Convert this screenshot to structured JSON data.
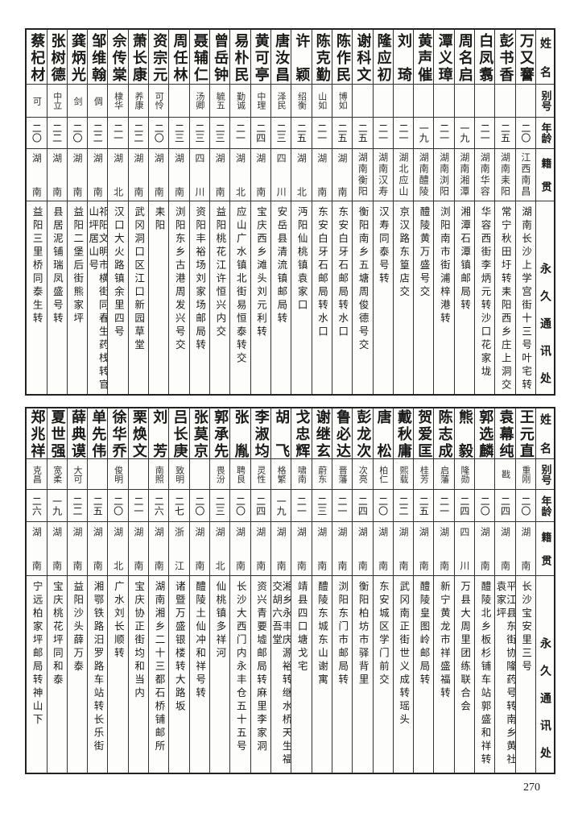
{
  "headers": {
    "name": "姓名",
    "alias": "别号",
    "age": "年龄",
    "home": "籍贯",
    "addr": "永久通讯处"
  },
  "tables": [
    {
      "rows": [
        {
          "name": "万又謇",
          "alias": "",
          "age": "二〇",
          "home": "江西南昌",
          "addr": "湖南长沙上学宫街十三号叶宅转"
        },
        {
          "name": "彭书香",
          "alias": "",
          "age": "二五",
          "home": "湖南耒阳",
          "addr": "常宁秋田圩转耒阳西乡庄上洞交"
        },
        {
          "name": "白凤翥",
          "alias": "",
          "age": "二一",
          "home": "湖南华容",
          "addr": "华容西街李炳元转沙口花家垅"
        },
        {
          "name": "周名启",
          "alias": "",
          "age": "一九",
          "home": "湖南湘潭",
          "addr": "湘潭石潭镇邮局转"
        },
        {
          "name": "潭义璋",
          "alias": "",
          "age": "二一",
          "home": "湖南浏阳",
          "addr": "浏阳南市街浦梓港转"
        },
        {
          "name": "黄声催",
          "alias": "",
          "age": "一九",
          "home": "湖南醴陵",
          "addr": "醴陵黄万盛号交"
        },
        {
          "name": "刘琦",
          "alias": "",
          "age": "二一",
          "home": "湖北应山",
          "addr": "京汉路东篁店交"
        },
        {
          "name": "隆应初",
          "alias": "",
          "age": "二一",
          "home": "湖南汉寿",
          "addr": "汉寿同泰号转"
        },
        {
          "name": "谢科文",
          "alias": "",
          "age": "二五",
          "home": "湖南衡阳",
          "addr": "衡阳南乡五塘周俊德号交"
        },
        {
          "name": "陈作民",
          "alias": "博如",
          "age": "二五",
          "home": "湖南",
          "addr": "东安白牙石邮局转水口"
        },
        {
          "name": "陈克勤",
          "alias": "山如",
          "age": "二一",
          "home": "湖南",
          "addr": "东安白牙石邮局转水口"
        },
        {
          "name": "许颖",
          "alias": "绍衡",
          "age": "二五",
          "home": "湖北",
          "addr": "沔阳仙桃镇袁家口"
        },
        {
          "name": "唐汝昌",
          "alias": "泽民",
          "age": "二三",
          "home": "四川",
          "addr": "安岳县清流镇邮局转"
        },
        {
          "name": "黄可亭",
          "alias": "中理",
          "age": "二四",
          "home": "湖南",
          "addr": "宝庆西乡滩头刘元利转"
        },
        {
          "name": "易朴民",
          "alias": "勤诚",
          "age": "二一",
          "home": "湖北",
          "addr": "应山广水镇北街易恒泰转交"
        },
        {
          "name": "曾岳钟",
          "alias": "毓五",
          "age": "二三",
          "home": "湖南",
          "addr": "益阳桃花江许恒兴内交"
        },
        {
          "name": "聂辅仁",
          "alias": "汤卿",
          "age": "二三",
          "home": "四川",
          "addr": "资阳丰裕场刘家场邮局转"
        },
        {
          "name": "周任林",
          "alias": "",
          "age": "二三",
          "home": "湖南",
          "addr": "浏阳东乡古港周发兴号交"
        },
        {
          "name": "资宗元",
          "alias": "可怜",
          "age": "二〇",
          "home": "湖南",
          "addr": "耒阳"
        },
        {
          "name": "萧长康",
          "alias": "养康",
          "age": "二二",
          "home": "湖南",
          "addr": "武冈洞口区江口新园草堂"
        },
        {
          "name": "佘传棠",
          "alias": "棣华",
          "age": "二一",
          "home": "湖北",
          "addr": "汉口大火路镇余里四号"
        },
        {
          "name": "邹维翰",
          "alias": "倜",
          "age": "二二",
          "home": "湖南",
          "addr": "祁阳文明市横街同春生药栈转官山坪居山号"
        },
        {
          "name": "龚炳光",
          "alias": "剑",
          "age": "二〇",
          "home": "湖南",
          "addr": "益阳二堡后街熊家坪"
        },
        {
          "name": "张树德",
          "alias": "中立",
          "age": "二二",
          "home": "湖南",
          "addr": "县居泥铺瑞凤盛号转"
        },
        {
          "name": "蔡杞材",
          "alias": "可",
          "age": "二〇",
          "home": "湖南",
          "addr": "益阳三里桥同泰生转"
        }
      ]
    },
    {
      "rows": [
        {
          "name": "王元直",
          "alias": "重刚",
          "age": "二〇",
          "home": "湖南",
          "addr": "长沙宝安里三号"
        },
        {
          "name": "袁幕纯",
          "alias": "戡",
          "age": "二四",
          "home": "湖南",
          "addr": "平江县东街协隆药号转南乡黄社袁家坪"
        },
        {
          "name": "郭选麟",
          "alias": "",
          "age": "二〇",
          "home": "湖南",
          "addr": "醴陵北乡板杉铺车站郭盛和祥转"
        },
        {
          "name": "熊毅",
          "alias": "隆勋",
          "age": "二四",
          "home": "四川",
          "addr": "万县大周里团练联合会"
        },
        {
          "name": "陈志成",
          "alias": "启藩",
          "age": "二一",
          "home": "湖南",
          "addr": "新宁黄龙市祥盛福转"
        },
        {
          "name": "贺爱匡",
          "alias": "桂芳",
          "age": "二五",
          "home": "湖南",
          "addr": "醴陵皇图岭邮局转"
        },
        {
          "name": "戴秋庸",
          "alias": "熙载",
          "age": "二二",
          "home": "湖南",
          "addr": "武冈南正街世义成转瑶头"
        },
        {
          "name": "唐松",
          "alias": "柏仁",
          "age": "二〇",
          "home": "湖南",
          "addr": "东安城区学门前交"
        },
        {
          "name": "彭龙次",
          "alias": "次亮",
          "age": "二四",
          "home": "湖南",
          "addr": "衡阳柏坊市驿背里"
        },
        {
          "name": "鲁必达",
          "alias": "晋藩",
          "age": "二一",
          "home": "湖南",
          "addr": "浏阳东门市邮局转"
        },
        {
          "name": "谢继玄",
          "alias": "蔚东",
          "age": "二三",
          "home": "湖南",
          "addr": "醴陵东城东山谢寓"
        },
        {
          "name": "戈忠辉",
          "alias": "啸南",
          "age": "二一",
          "home": "湖南",
          "addr": "靖县四口塘戈宅"
        },
        {
          "name": "胡飞",
          "alias": "格繁",
          "age": "一九",
          "home": "湖南",
          "addr": "湘乡永丰庆源裕转继水桥天生福交胡六吾堂"
        },
        {
          "name": "李淑均",
          "alias": "灵性",
          "age": "二四",
          "home": "湖南",
          "addr": "资兴青要墟邮局转麻里李家洞"
        },
        {
          "name": "张胤",
          "alias": "聘良",
          "age": "二〇",
          "home": "湖南",
          "addr": "长沙大西门内永丰仓五十五号"
        },
        {
          "name": "郭承先",
          "alias": "畏汾",
          "age": "二三",
          "home": "湖北",
          "addr": "仙桃镇多祥河"
        },
        {
          "name": "张莫京",
          "alias": "",
          "age": "二〇",
          "home": "湖南",
          "addr": "醴陵土仙冲和祥号转"
        },
        {
          "name": "吕长庚",
          "alias": "致明",
          "age": "二七",
          "home": "浙江",
          "addr": "诸暨万盛银楼转大路坂"
        },
        {
          "name": "刘芳",
          "alias": "南照",
          "age": "二六",
          "home": "湖南",
          "addr": "湖南湘乡二十三都石桥铺邮所"
        },
        {
          "name": "栗焕文",
          "alias": "",
          "age": "二一",
          "home": "湖南",
          "addr": "宝庆协正街均和当内"
        },
        {
          "name": "徐华乔",
          "alias": "俊明",
          "age": "二〇",
          "home": "湖北",
          "addr": "广水刘长顺转"
        },
        {
          "name": "单先伟",
          "alias": "",
          "age": "二五",
          "home": "湖南",
          "addr": "湘鄂铁路汨罗路车站转长乐街"
        },
        {
          "name": "薛典谟",
          "alias": "大可",
          "age": "二二",
          "home": "湖南",
          "addr": "益阳沙头薛万泰"
        },
        {
          "name": "夏世强",
          "alias": "宽柔",
          "age": "一九",
          "home": "湖南",
          "addr": "宝庆桃花坪同和泰"
        },
        {
          "name": "郑兆祥",
          "alias": "克昌",
          "age": "二六",
          "home": "湖南",
          "addr": "宁远柏家坪邮局转神山下"
        }
      ]
    }
  ],
  "page_number": "270"
}
